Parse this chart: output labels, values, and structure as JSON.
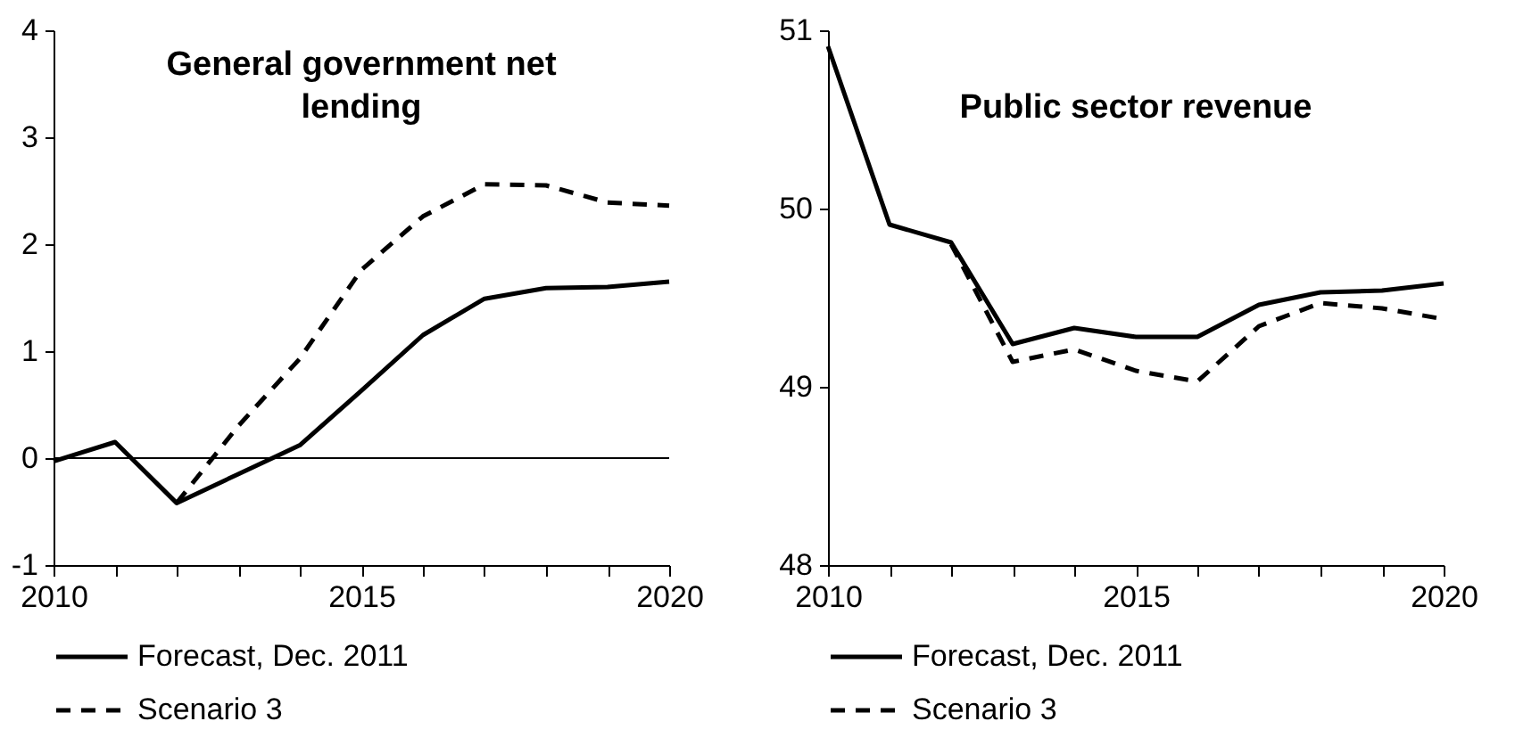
{
  "chart_data": [
    {
      "type": "line",
      "title": "General government net lending",
      "x": [
        2010,
        2011,
        2012,
        2013,
        2014,
        2015,
        2016,
        2017,
        2018,
        2019,
        2020
      ],
      "xlim": [
        2010,
        2020
      ],
      "xticks": [
        2010,
        {
          "value": 2011,
          "label": null
        },
        {
          "value": 2012,
          "label": null
        },
        {
          "value": 2013,
          "label": null
        },
        {
          "value": 2014,
          "label": null
        },
        2015,
        {
          "value": 2016,
          "label": null
        },
        {
          "value": 2017,
          "label": null
        },
        {
          "value": 2018,
          "label": null
        },
        {
          "value": 2019,
          "label": null
        },
        2020
      ],
      "ylim": [
        -1,
        4
      ],
      "yticks": [
        -1,
        0,
        1,
        2,
        3,
        4
      ],
      "legend": "bottom",
      "ref_lines": [
        {
          "axis": "y",
          "value": 0,
          "color": "#000000"
        }
      ],
      "series": [
        {
          "name": "Forecast, Dec. 2011",
          "color": "#000000",
          "line_style": "solid",
          "values": [
            -0.03,
            0.15,
            -0.42,
            -0.15,
            0.12,
            0.63,
            1.15,
            1.49,
            1.59,
            1.6,
            1.65
          ]
        },
        {
          "name": "Scenario 3",
          "color": "#000000",
          "line_style": "dashed",
          "values": [
            null,
            null,
            -0.42,
            0.3,
            0.93,
            1.76,
            2.26,
            2.56,
            2.55,
            2.39,
            2.36
          ]
        }
      ]
    },
    {
      "type": "line",
      "title": "Public sector revenue",
      "x": [
        2010,
        2011,
        2012,
        2013,
        2014,
        2015,
        2016,
        2017,
        2018,
        2019,
        2020
      ],
      "xlim": [
        2010,
        2020
      ],
      "xticks": [
        2010,
        {
          "value": 2011,
          "label": null
        },
        {
          "value": 2012,
          "label": null
        },
        {
          "value": 2013,
          "label": null
        },
        {
          "value": 2014,
          "label": null
        },
        2015,
        {
          "value": 2016,
          "label": null
        },
        {
          "value": 2017,
          "label": null
        },
        {
          "value": 2018,
          "label": null
        },
        {
          "value": 2019,
          "label": null
        },
        2020
      ],
      "ylim": [
        48,
        51
      ],
      "yticks": [
        48,
        49,
        50,
        51
      ],
      "legend": "bottom",
      "series": [
        {
          "name": "Forecast, Dec. 2011",
          "color": "#000000",
          "line_style": "solid",
          "values": [
            50.91,
            49.91,
            49.81,
            49.24,
            49.33,
            49.28,
            49.28,
            49.46,
            49.53,
            49.54,
            49.58
          ]
        },
        {
          "name": "Scenario 3",
          "color": "#000000",
          "line_style": "dashed",
          "values": [
            null,
            null,
            49.8,
            49.14,
            49.21,
            49.09,
            49.03,
            49.34,
            49.47,
            49.44,
            49.38
          ]
        }
      ]
    }
  ]
}
